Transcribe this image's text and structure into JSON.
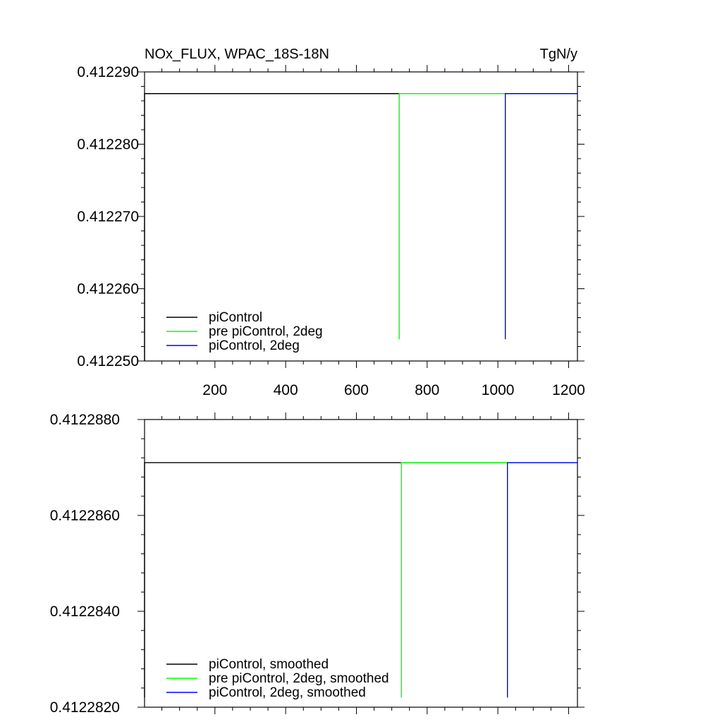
{
  "chart_data": [
    {
      "type": "line",
      "title": "NOx_FLUX, WPAC_18S-18N",
      "units": "TgN/y",
      "xlim": [
        1,
        1225
      ],
      "ylim": [
        0.41225,
        0.41229
      ],
      "x_ticks": [
        200,
        400,
        600,
        800,
        1000,
        1200
      ],
      "x_tick_labels": [
        "200",
        "400",
        "600",
        "800",
        "1000",
        "1200"
      ],
      "y_ticks": [
        0.41225,
        0.41226,
        0.41227,
        0.41228,
        0.41229
      ],
      "y_tick_labels": [
        "0.412250",
        "0.412260",
        "0.412270",
        "0.412280",
        "0.412290"
      ],
      "legend_position": "bottom-left",
      "series": [
        {
          "name": "piControl",
          "color": "#000000",
          "points": [
            [
              1,
              0.41225
            ],
            [
              1,
              0.412287
            ],
            [
              1225,
              0.412287
            ]
          ]
        },
        {
          "name": "pre piControl, 2deg",
          "color": "#00ff00",
          "points": [
            [
              721,
              0.412253
            ],
            [
              721,
              0.412287
            ],
            [
              1225,
              0.412287
            ]
          ]
        },
        {
          "name": "piControl, 2deg",
          "color": "#0000ff",
          "points": [
            [
              1021,
              0.412253
            ],
            [
              1021,
              0.412287
            ],
            [
              1225,
              0.412287
            ]
          ]
        }
      ]
    },
    {
      "type": "line",
      "xlim": [
        1,
        1225
      ],
      "ylim": [
        0.412282,
        0.412288
      ],
      "x_ticks": [
        200,
        400,
        600,
        800,
        1000,
        1200
      ],
      "y_ticks": [
        0.412282,
        0.412284,
        0.412286,
        0.412288
      ],
      "y_tick_labels": [
        "0.4122820",
        "0.4122840",
        "0.4122860",
        "0.4122880"
      ],
      "legend_position": "bottom-left",
      "series": [
        {
          "name": "piControl, smoothed",
          "color": "#000000",
          "points": [
            [
              1,
              0.4122822
            ],
            [
              1,
              0.4122871
            ],
            [
              1225,
              0.4122871
            ]
          ]
        },
        {
          "name": "pre piControl, 2deg, smoothed",
          "color": "#00ff00",
          "points": [
            [
              727,
              0.4122822
            ],
            [
              727,
              0.4122871
            ],
            [
              1225,
              0.4122871
            ]
          ]
        },
        {
          "name": "piControl, 2deg, smoothed",
          "color": "#0000ff",
          "points": [
            [
              1027,
              0.4122822
            ],
            [
              1027,
              0.4122871
            ],
            [
              1225,
              0.4122871
            ]
          ]
        }
      ]
    }
  ]
}
